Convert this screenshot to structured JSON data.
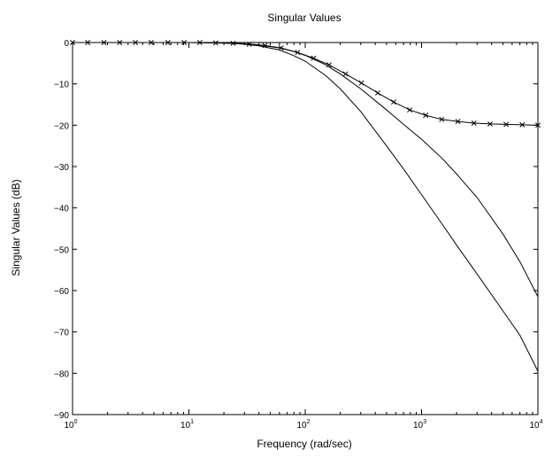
{
  "chart_data": {
    "type": "line",
    "title": "Singular Values",
    "xlabel": "Frequency (rad/sec)",
    "ylabel": "Singular Values (dB)",
    "xscale": "log",
    "xlim": [
      1,
      10000
    ],
    "ylim": [
      -90,
      0
    ],
    "x_ticks": [
      {
        "value": 1,
        "base": "10",
        "exp": "0"
      },
      {
        "value": 10,
        "base": "10",
        "exp": "1"
      },
      {
        "value": 100,
        "base": "10",
        "exp": "2"
      },
      {
        "value": 1000,
        "base": "10",
        "exp": "3"
      },
      {
        "value": 10000,
        "base": "10",
        "exp": "4"
      }
    ],
    "y_ticks": [
      {
        "value": 0,
        "label": "0"
      },
      {
        "value": -10,
        "label": "−10"
      },
      {
        "value": -20,
        "label": "−20"
      },
      {
        "value": -30,
        "label": "−30"
      },
      {
        "value": -40,
        "label": "−40"
      },
      {
        "value": -50,
        "label": "−50"
      },
      {
        "value": -60,
        "label": "−60"
      },
      {
        "value": -70,
        "label": "−70"
      },
      {
        "value": -80,
        "label": "−80"
      },
      {
        "value": -90,
        "label": "−90"
      }
    ],
    "grid": false,
    "legend": "none",
    "line_color": "#000000",
    "series": [
      {
        "marker": "x",
        "x": [
          1,
          1.35,
          1.86,
          2.54,
          3.47,
          4.74,
          6.6,
          9.1,
          12.4,
          17.0,
          24,
          33,
          45,
          62,
          86,
          118,
          160,
          222,
          304,
          420,
          575,
          790,
          1085,
          1490,
          2050,
          2820,
          3880,
          5330,
          7330,
          10000
        ],
        "y": [
          0,
          0,
          0,
          0,
          0,
          0,
          0,
          0,
          0,
          -0.1,
          -0.2,
          -0.4,
          -0.7,
          -1.3,
          -2.4,
          -3.8,
          -5.4,
          -7.6,
          -9.8,
          -12.2,
          -14.4,
          -16.3,
          -17.6,
          -18.6,
          -19.1,
          -19.5,
          -19.7,
          -19.8,
          -19.9,
          -20
        ]
      },
      {
        "marker": "none",
        "x": [
          1,
          10,
          20,
          30,
          40,
          60,
          80,
          100,
          150,
          200,
          300,
          500,
          700,
          1000,
          1500,
          2000,
          3000,
          5000,
          7000,
          10000
        ],
        "y": [
          0,
          0,
          -0.1,
          -0.3,
          -0.6,
          -1.3,
          -2.2,
          -3.1,
          -5.4,
          -7.6,
          -11.2,
          -16.3,
          -19.8,
          -23.4,
          -28.0,
          -31.8,
          -37.5,
          -46.3,
          -53.0,
          -61.5
        ]
      },
      {
        "marker": "none",
        "x": [
          1,
          10,
          20,
          30,
          40,
          60,
          80,
          100,
          150,
          200,
          300,
          500,
          700,
          1000,
          1500,
          2000,
          3000,
          5000,
          7000,
          10000
        ],
        "y": [
          0,
          0,
          -0.1,
          -0.4,
          -0.8,
          -1.8,
          -3.2,
          -4.5,
          -8.0,
          -11.2,
          -16.7,
          -25.0,
          -30.6,
          -36.8,
          -43.9,
          -49.0,
          -56.0,
          -64.9,
          -70.8,
          -79.5
        ]
      }
    ]
  }
}
